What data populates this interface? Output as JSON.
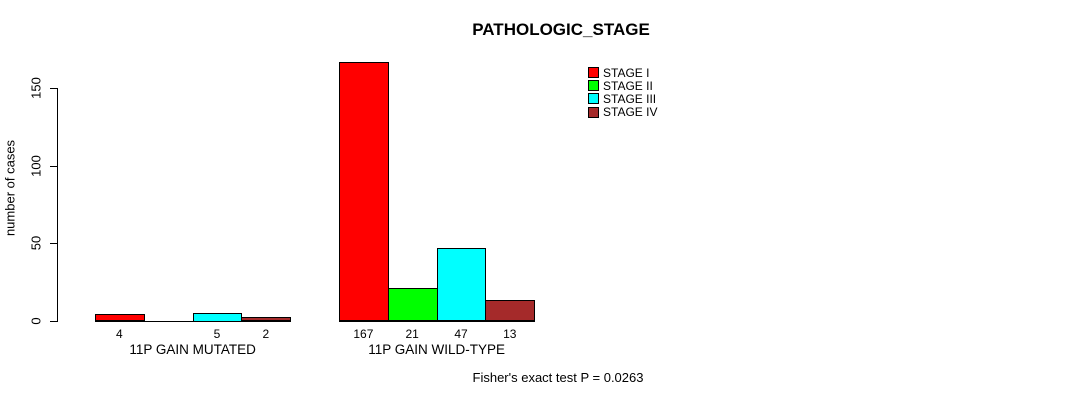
{
  "chart_data": {
    "type": "bar",
    "title": "PATHOLOGIC_STAGE",
    "xlabel": "",
    "ylabel": "number of cases",
    "ylim": [
      0,
      167
    ],
    "yticks": [
      0,
      50,
      100,
      150
    ],
    "categories": [
      "11P GAIN MUTATED",
      "11P GAIN WILD-TYPE"
    ],
    "series": [
      {
        "name": "STAGE I",
        "color": "#FF0000",
        "values": [
          4,
          167
        ]
      },
      {
        "name": "STAGE II",
        "color": "#00FF00",
        "values": [
          0,
          21
        ]
      },
      {
        "name": "STAGE III",
        "color": "#00FFFF",
        "values": [
          5,
          47
        ]
      },
      {
        "name": "STAGE IV",
        "color": "#A52A2A",
        "values": [
          2,
          13
        ]
      }
    ],
    "bar_value_labels": true,
    "zero_values_hidden": true,
    "legend_position": "top-right",
    "grid": false,
    "annotation": "Fisher's exact test P = 0.0263"
  },
  "colors": {
    "background": "#FFFFFF",
    "text": "#000000",
    "axis": "#000000"
  }
}
